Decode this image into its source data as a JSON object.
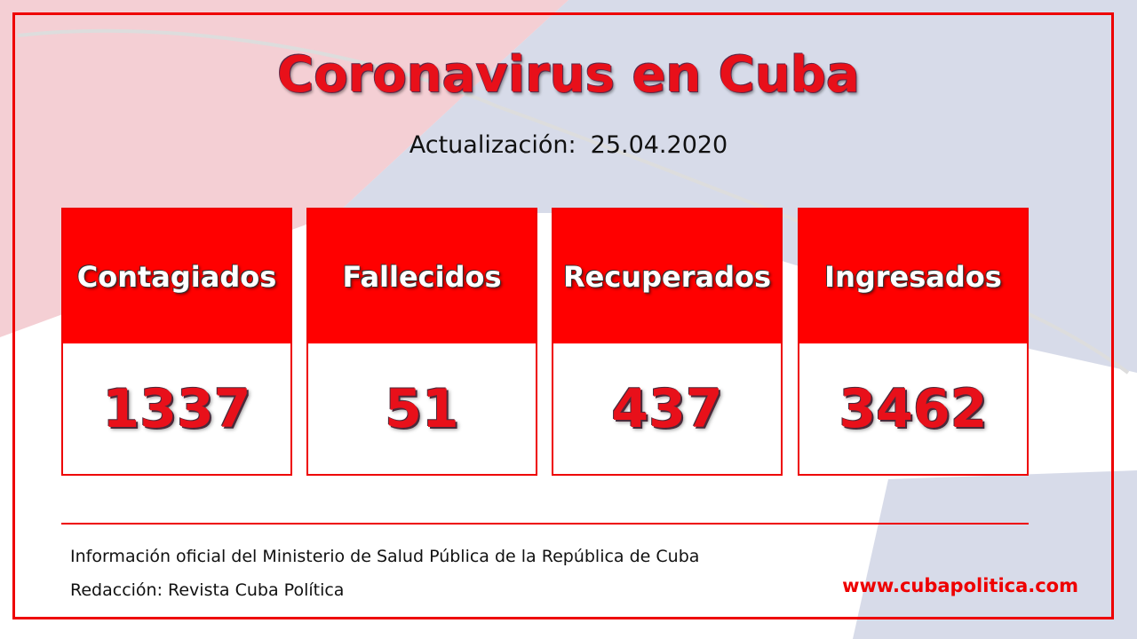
{
  "header": {
    "title": "Coronavirus en Cuba",
    "update_label": "Actualización:",
    "date": "25.04.2020"
  },
  "cards": [
    {
      "label": "Contagiados",
      "value": 1337
    },
    {
      "label": "Fallecidos",
      "value": 51
    },
    {
      "label": "Recuperados",
      "value": 437
    },
    {
      "label": "Ingresados",
      "value": 3462
    }
  ],
  "footer": {
    "source": "Información oficial del Ministerio de Salud Pública de la República de Cuba",
    "credit": "Redacción: Revista Cuba Política",
    "website": "www.cubapolitica.com"
  }
}
